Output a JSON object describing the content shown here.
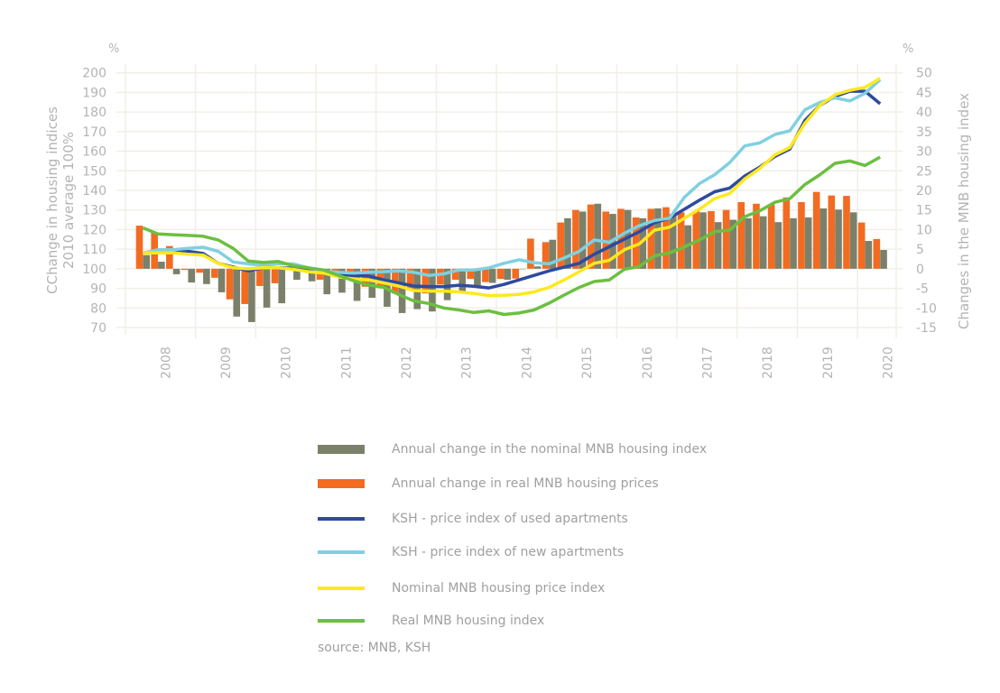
{
  "chart_data": {
    "type": "bar+line",
    "title": "",
    "left_axis": {
      "unit_label": "%",
      "label_line1": "CChange in housing indices",
      "label_line2": "2010 average 100%",
      "ylim": [
        70,
        200
      ],
      "ticks": [
        200,
        190,
        180,
        170,
        160,
        150,
        140,
        130,
        120,
        110,
        100,
        90,
        80,
        70
      ]
    },
    "right_axis": {
      "unit_label": "%",
      "label": "Changes in the MNB housing index",
      "ylim": [
        -15,
        50
      ],
      "ticks": [
        50,
        45,
        40,
        35,
        30,
        25,
        20,
        15,
        10,
        5,
        0,
        -5,
        -10,
        -15
      ]
    },
    "x_years": [
      "2008",
      "2009",
      "2010",
      "2011",
      "2012",
      "2013",
      "2014",
      "2015",
      "2016",
      "2017",
      "2018",
      "2019",
      "2020"
    ],
    "periods": "quarterly 2008Q1-2020Q2",
    "grid": true,
    "bar_series": [
      {
        "name": "Annual change in the nominal MNB housing index",
        "color": "#7b806a",
        "axis": "right",
        "values": [
          3.5,
          1.8,
          -1.4,
          -3.5,
          -3.9,
          -6,
          -12.2,
          -13.6,
          -9.9,
          -8.8,
          -2.8,
          -3.2,
          -6.5,
          -6.1,
          -8.2,
          -7.4,
          -9.7,
          -11.3,
          -10.3,
          -10.9,
          -8,
          -5.7,
          -4.6,
          -3.6,
          -2.8,
          0,
          0.6,
          7.4,
          12.9,
          14.6,
          16.6,
          14,
          15,
          12.9,
          15.4,
          14,
          11.1,
          14.4,
          11.9,
          12.5,
          12.9,
          13.4,
          11.9,
          12.9,
          13.1,
          15.4,
          15.1,
          14.4,
          7.1,
          4.8
        ]
      },
      {
        "name": "Annual change in real MNB housing prices",
        "color": "#f26b21",
        "axis": "right",
        "values": [
          11,
          9.2,
          5.8,
          -0.3,
          -1,
          -2.3,
          -7.8,
          -9,
          -4.4,
          -3.7,
          -0.2,
          -0.5,
          -2.8,
          -1.7,
          -2.8,
          -4.6,
          -4.6,
          -6.3,
          -5.5,
          -6.3,
          -4,
          -2.8,
          -2.6,
          -3.4,
          -2.6,
          -2.5,
          7.7,
          6.8,
          11.8,
          15,
          16.4,
          14.6,
          15.3,
          13.1,
          15.3,
          15.7,
          14.4,
          14.7,
          14.7,
          15,
          17,
          16.6,
          16.4,
          18.2,
          17,
          19.6,
          18.7,
          18.6,
          11.8,
          7.6
        ]
      }
    ],
    "line_series": [
      {
        "name": "KSH - price index of used apartments",
        "color": "#2f4a9f",
        "axis": "left",
        "values": [
          108.1,
          108.1,
          109.7,
          108.9,
          107.8,
          102.8,
          100.9,
          98.9,
          100.5,
          100.5,
          100.3,
          99.4,
          98.5,
          96.6,
          96.6,
          96.3,
          94.3,
          92.8,
          91.2,
          90.9,
          90.9,
          91.6,
          91.1,
          90.2,
          92,
          94.3,
          96.6,
          98.9,
          100.8,
          102.8,
          107.4,
          111.2,
          115.1,
          118.9,
          123.5,
          125.8,
          130.4,
          135,
          139.3,
          141.2,
          147.3,
          151.9,
          157.3,
          161.1,
          175.7,
          183.4,
          188,
          190.6,
          190.6,
          184.2
        ]
      },
      {
        "name": "KSH - price index of new apartments",
        "color": "#80d0e0",
        "axis": "left",
        "values": [
          108.1,
          109.7,
          109.7,
          110.4,
          111,
          108.9,
          103.5,
          102.5,
          101.7,
          102.5,
          102.5,
          100.5,
          98.9,
          98.2,
          97.8,
          98.2,
          98.5,
          98.9,
          98.2,
          96.6,
          97.4,
          99.4,
          99.4,
          100.5,
          102.8,
          104.6,
          103.1,
          102.5,
          105.5,
          108.9,
          114.7,
          113.5,
          118.1,
          122,
          124.6,
          125.8,
          136.6,
          143.5,
          148,
          154.2,
          162.7,
          164.2,
          168.5,
          170.4,
          181.1,
          184.9,
          187.2,
          185.7,
          189.6,
          196.5
        ]
      },
      {
        "name": "Nominal MNB housing price index",
        "color": "#ffe81f",
        "axis": "left",
        "values": [
          108.1,
          108.1,
          108.1,
          107.4,
          107,
          102.8,
          100.5,
          100,
          100.5,
          100.5,
          99.7,
          98.5,
          97.8,
          95.9,
          94.8,
          94.3,
          92.8,
          91.2,
          88.9,
          88.6,
          88.6,
          88.2,
          87.4,
          86.3,
          86.5,
          86.9,
          88.2,
          90.5,
          94.3,
          98.5,
          102.8,
          104.3,
          109.7,
          112.7,
          119.7,
          121.2,
          125.8,
          130.4,
          135.8,
          138.4,
          145.8,
          151.2,
          158.1,
          161.9,
          174.2,
          183.4,
          188.8,
          191.1,
          192.6,
          197.2
        ]
      },
      {
        "name": "Real MNB housing index",
        "color": "#6cbf40",
        "axis": "left",
        "values": [
          120.9,
          117.8,
          117.4,
          117,
          116.6,
          114.7,
          110.4,
          104,
          103.2,
          103.7,
          101.5,
          100.5,
          99.4,
          96.6,
          93.9,
          91.7,
          90.5,
          86.9,
          83.6,
          82.3,
          80,
          79,
          77.7,
          78.5,
          76.7,
          77.4,
          79,
          82.5,
          86.6,
          90.5,
          93.5,
          94.3,
          99.7,
          101.2,
          106.6,
          108.1,
          111.2,
          114.7,
          118.9,
          119.7,
          126.6,
          129.6,
          133.9,
          135.8,
          143,
          148,
          153.8,
          155,
          152.7,
          157
        ]
      }
    ]
  },
  "source": "source: MNB, KSH"
}
